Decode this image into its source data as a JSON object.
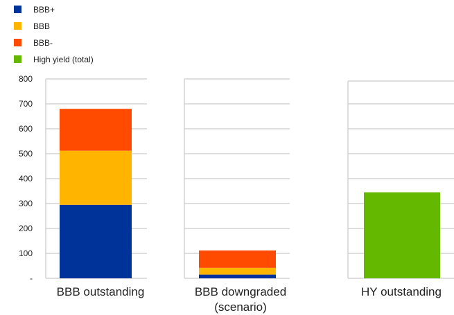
{
  "chart_data": {
    "type": "bar",
    "stacked": true,
    "title": "",
    "xlabel": "",
    "ylabel": "",
    "ylim": [
      0,
      800
    ],
    "yticks": [
      "-",
      "100",
      "200",
      "300",
      "400",
      "500",
      "600",
      "700",
      "800"
    ],
    "grid": true,
    "legend_position": "top-left",
    "categories": [
      [
        "BBB outstanding"
      ],
      [
        "BBB downgraded",
        "(scenario)"
      ],
      [
        "HY outstanding"
      ]
    ],
    "series": [
      {
        "name": "BBB+",
        "color": "#003399",
        "values": [
          295,
          15,
          0
        ]
      },
      {
        "name": "BBB",
        "color": "#ffb400",
        "values": [
          217,
          27,
          0
        ]
      },
      {
        "name": "BBB-",
        "color": "#ff4b00",
        "values": [
          168,
          70,
          0
        ]
      },
      {
        "name": "High yield (total)",
        "color": "#65b800",
        "values": [
          0,
          0,
          345
        ]
      }
    ]
  }
}
